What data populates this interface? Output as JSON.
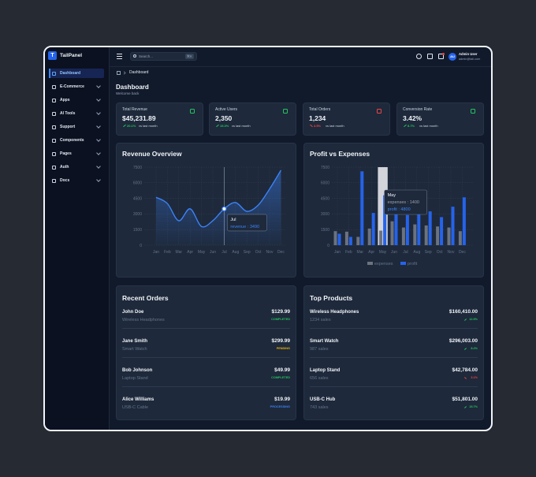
{
  "brand": {
    "logo": "T",
    "name": "TailPanel"
  },
  "search": {
    "placeholder": "Search...",
    "shortcut": "⌘K"
  },
  "user": {
    "initials": "AU",
    "name": "Admin User",
    "email": "admin@tail.com"
  },
  "sidebar": [
    {
      "label": "Dashboard",
      "active": true,
      "expandable": false
    },
    {
      "label": "E-Commerce",
      "active": false,
      "expandable": true
    },
    {
      "label": "Apps",
      "active": false,
      "expandable": true
    },
    {
      "label": "AI Tools",
      "active": false,
      "expandable": true
    },
    {
      "label": "Support",
      "active": false,
      "expandable": true
    },
    {
      "label": "Components",
      "active": false,
      "expandable": true
    },
    {
      "label": "Pages",
      "active": false,
      "expandable": true
    },
    {
      "label": "Auth",
      "active": false,
      "expandable": true
    },
    {
      "label": "Docs",
      "active": false,
      "expandable": true
    }
  ],
  "breadcrumb": "Dashboard",
  "header": {
    "title": "Dashboard",
    "subtitle": "Welcome back"
  },
  "stats": [
    {
      "label": "Total Revenue",
      "value": "$45,231.89",
      "change": "20.1%",
      "note": "vs last month",
      "trend": "up",
      "icon_color": "#22c55e"
    },
    {
      "label": "Active Users",
      "value": "2,350",
      "change": "15.3%",
      "note": "vs last month",
      "trend": "up",
      "icon_color": "#22c55e"
    },
    {
      "label": "Total Orders",
      "value": "1,234",
      "change": "4.5%",
      "note": "vs last month",
      "trend": "down",
      "icon_color": "#ef4444"
    },
    {
      "label": "Conversion Rate",
      "value": "3.42%",
      "change": "8.7%",
      "note": "vs last month",
      "trend": "up",
      "icon_color": "#22c55e"
    }
  ],
  "chart_data": [
    {
      "type": "line",
      "title": "Revenue Overview",
      "categories": [
        "Jan",
        "Feb",
        "Mar",
        "Apr",
        "May",
        "Jun",
        "Jul",
        "Aug",
        "Sep",
        "Oct",
        "Nov",
        "Dec"
      ],
      "values": [
        4600,
        4000,
        2350,
        3500,
        1800,
        2350,
        3490,
        4100,
        3250,
        3850,
        5400,
        7200
      ],
      "color": "#3b82f6",
      "ylim": [
        0,
        7500
      ],
      "yticks": [
        0,
        1500,
        3000,
        4500,
        6000,
        7500
      ],
      "grid": true,
      "tooltip": {
        "title": "Jul",
        "lines": [
          "revenue : 3490"
        ]
      }
    },
    {
      "type": "bar",
      "title": "Profit vs Expenses",
      "categories": [
        "Jan",
        "Feb",
        "Mar",
        "Apr",
        "May",
        "Jun",
        "Jul",
        "Aug",
        "Sep",
        "Oct",
        "Nov",
        "Dec"
      ],
      "series": [
        {
          "name": "expenses",
          "color": "#6b7280",
          "values": [
            1350,
            1300,
            800,
            1600,
            1400,
            2300,
            1700,
            2000,
            1900,
            1800,
            1700,
            1350
          ]
        },
        {
          "name": "profit",
          "color": "#2563eb",
          "values": [
            1100,
            800,
            7100,
            3100,
            4800,
            3500,
            2900,
            4200,
            3250,
            2700,
            3700,
            4600
          ]
        }
      ],
      "ylim": [
        0,
        7500
      ],
      "yticks": [
        0,
        1500,
        3000,
        4500,
        6000,
        7500
      ],
      "grid": true,
      "legend": "bottom",
      "tooltip": {
        "title": "May",
        "lines": [
          "expenses : 1400",
          "profit : 4800"
        ]
      }
    }
  ],
  "orders": {
    "title": "Recent Orders",
    "rows": [
      {
        "name": "John Doe",
        "item": "Wireless Headphones",
        "amount": "$129.99",
        "status": "COMPLETED",
        "status_color": "#22c55e"
      },
      {
        "name": "Jane Smith",
        "item": "Smart Watch",
        "amount": "$299.99",
        "status": "PENDING",
        "status_color": "#eab308"
      },
      {
        "name": "Bob Johnson",
        "item": "Laptop Stand",
        "amount": "$49.99",
        "status": "COMPLETED",
        "status_color": "#22c55e"
      },
      {
        "name": "Alice Williams",
        "item": "USB-C Cable",
        "amount": "$19.99",
        "status": "PROCESSING",
        "status_color": "#3b82f6"
      }
    ]
  },
  "products": {
    "title": "Top Products",
    "rows": [
      {
        "name": "Wireless Headphones",
        "sales": "1234 sales",
        "amount": "$160,410.00",
        "change": "12.5%",
        "trend": "up"
      },
      {
        "name": "Smart Watch",
        "sales": "987 sales",
        "amount": "$296,003.00",
        "change": "8.2%",
        "trend": "up"
      },
      {
        "name": "Laptop Stand",
        "sales": "656 sales",
        "amount": "$42,784.00",
        "change": "3.1%",
        "trend": "down"
      },
      {
        "name": "USB-C Hub",
        "sales": "743 sales",
        "amount": "$51,801.00",
        "change": "15.7%",
        "trend": "up"
      }
    ]
  }
}
